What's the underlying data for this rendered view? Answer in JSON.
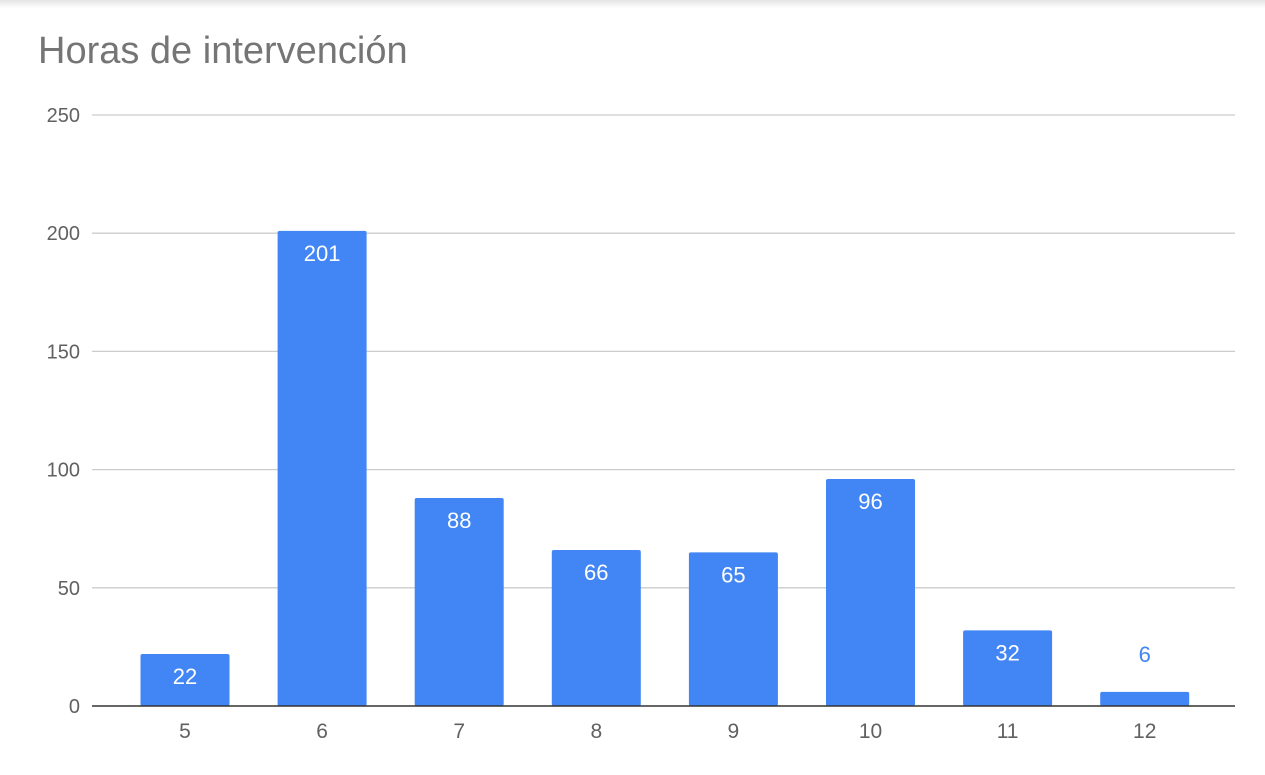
{
  "chart_data": {
    "type": "bar",
    "title": "Horas de intervención",
    "xlabel": "",
    "ylabel": "",
    "categories": [
      "5",
      "6",
      "7",
      "8",
      "9",
      "10",
      "11",
      "12"
    ],
    "values": [
      22,
      201,
      88,
      66,
      65,
      96,
      32,
      6
    ],
    "data_labels": [
      "22",
      "201",
      "88",
      "66",
      "65",
      "96",
      "32",
      "6"
    ],
    "yticks": [
      0,
      50,
      100,
      150,
      200,
      250
    ],
    "ylim": [
      0,
      250
    ],
    "grid": true,
    "legend": "none",
    "colors": {
      "bar": "#4285f4",
      "label_inside": "#ffffff",
      "label_outside": "#4285f4",
      "gridline": "#cccccc",
      "baseline": "#333333",
      "tick_text": "#616161",
      "title": "#757575"
    }
  }
}
